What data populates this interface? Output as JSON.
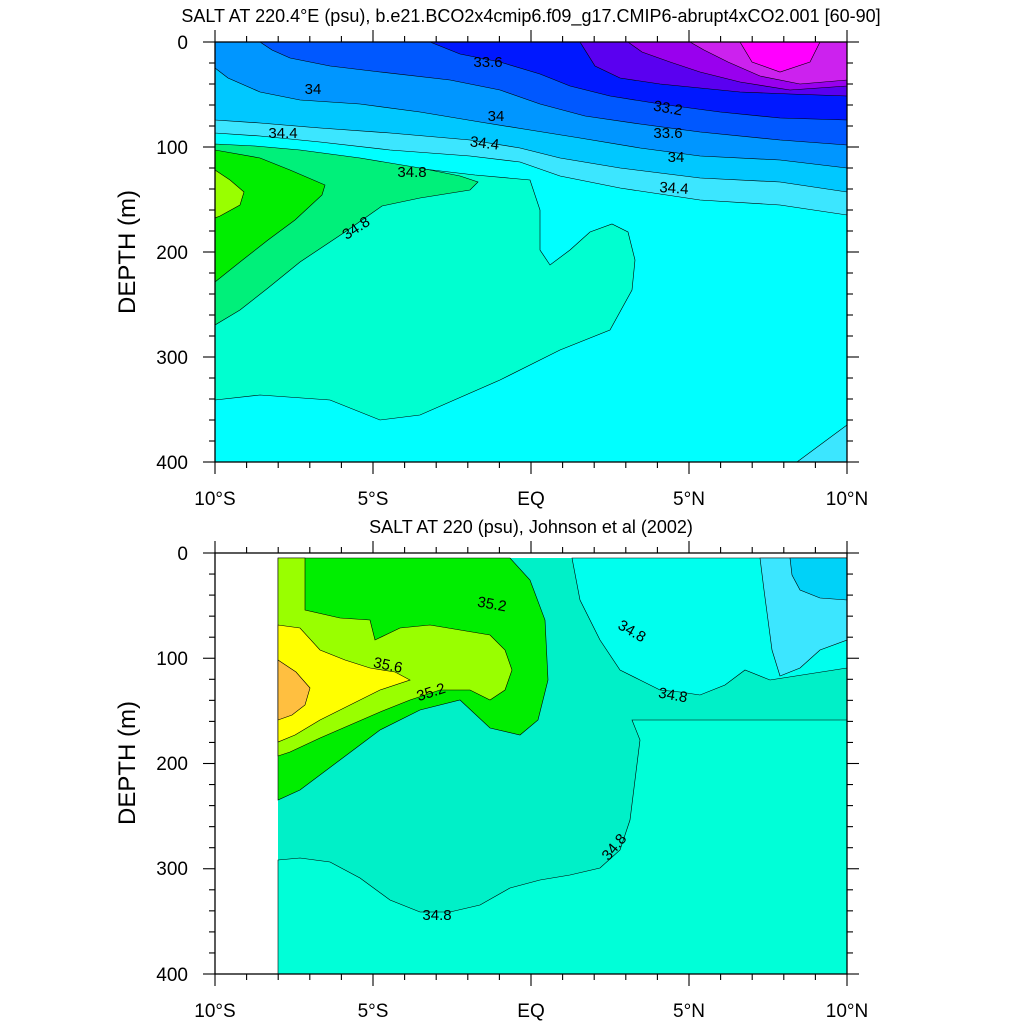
{
  "chart_data": [
    {
      "type": "contour",
      "title": "SALT AT 220.4°E (psu), b.e21.BCO2x4cmip6.f09_g17.CMIP6-abrupt4xCO2.001 [60-90]",
      "ylabel": "DEPTH (m)",
      "xlabel": "",
      "xlim": [
        -10,
        10
      ],
      "ylim": [
        400,
        0
      ],
      "y_inverted": true,
      "x_ticks": [
        "10°S",
        "5°S",
        "EQ",
        "5°N",
        "10°N"
      ],
      "y_ticks": [
        "0",
        "100",
        "200",
        "300",
        "400"
      ],
      "contour_interval": 0.2,
      "contour_labels": [
        "34",
        "33.6",
        "34",
        "34.4",
        "34.4",
        "34.8",
        "34.8",
        "33.2",
        "33.6",
        "34",
        "34.4"
      ],
      "colors_by_level": {
        "33.0+": "#ff00ff",
        "32.8-33.0": "#cc22ee",
        "33.0-33.2": "#9900ee",
        "33.2-33.4": "#5a00f0",
        "33.4-33.6": "#0018ff",
        "33.6-33.8": "#0058ff",
        "33.8-34.0": "#0096ff",
        "34.0-34.2": "#00c8ff",
        "34.2-34.4": "#3ce6ff",
        "34.4-34.6": "#00ffff",
        "34.6-34.8": "#00ffd0",
        "34.8-35.0": "#00f07a",
        "35.0-35.2": "#00ee00",
        "35.2-35.4": "#99ff00"
      }
    },
    {
      "type": "contour",
      "title": "SALT AT 220 (psu), Johnson et al (2002)",
      "ylabel": "DEPTH (m)",
      "xlabel": "",
      "xlim": [
        -10,
        10
      ],
      "ylim": [
        400,
        0
      ],
      "y_inverted": true,
      "x_ticks": [
        "10°S",
        "5°S",
        "EQ",
        "5°N",
        "10°N"
      ],
      "y_ticks": [
        "0",
        "100",
        "200",
        "300",
        "400"
      ],
      "contour_interval": 0.2,
      "contour_labels": [
        "35.2",
        "35.6",
        "35.2",
        "34.8",
        "34.8",
        "34.8",
        "34.8"
      ],
      "data_start_x": -8,
      "colors_by_level": {
        "34.2-34.4": "#00d2f8",
        "34.4-34.6": "#3ce6ff",
        "34.6-34.8": "#00ffee",
        "34.8-35.0": "#00f0c8",
        "35.0-35.2": "#00ee00",
        "35.2-35.4": "#99ff00",
        "35.4-35.6": "#ffff00",
        "35.6+": "#ffbf40"
      }
    }
  ]
}
